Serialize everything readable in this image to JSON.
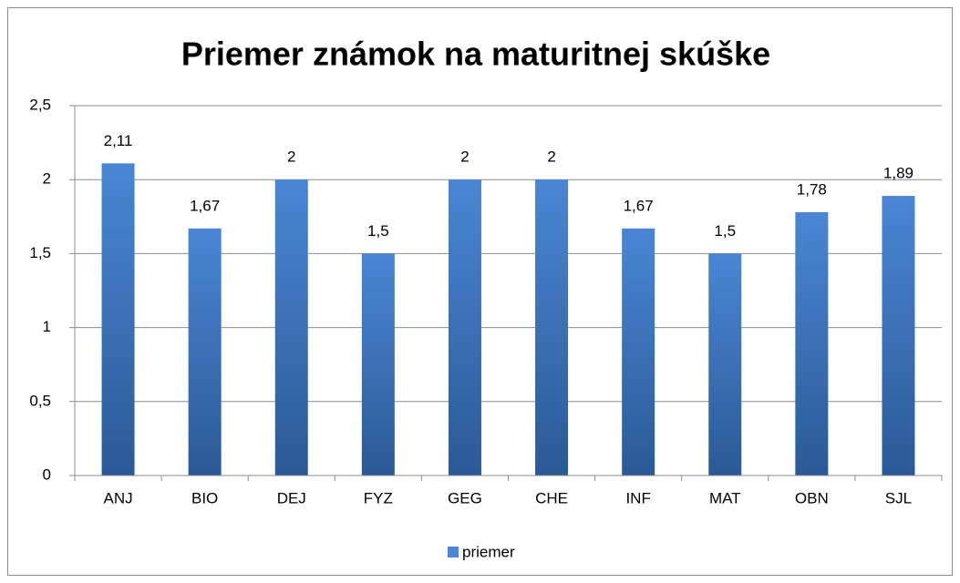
{
  "chart_data": {
    "type": "bar",
    "title": "Priemer známok na maturitnej skúške",
    "categories": [
      "ANJ",
      "BIO",
      "DEJ",
      "FYZ",
      "GEG",
      "CHE",
      "INF",
      "MAT",
      "OBN",
      "SJL"
    ],
    "series": [
      {
        "name": "priemer",
        "color": "#4a86d4",
        "values": [
          2.11,
          1.67,
          2,
          1.5,
          2,
          2,
          1.67,
          1.5,
          1.78,
          1.89
        ],
        "value_labels": [
          "2,11",
          "1,67",
          "2",
          "1,5",
          "2",
          "2",
          "1,67",
          "1,5",
          "1,78",
          "1,89"
        ]
      }
    ],
    "ylim": [
      0,
      2.5
    ],
    "yticks": [
      0,
      {
        "value": 0.5,
        "label": "0,5"
      },
      1,
      {
        "value": 1.5,
        "label": "1,5"
      },
      2,
      {
        "value": 2.5,
        "label": "2,5"
      }
    ],
    "grid": true,
    "legend": "bottom"
  }
}
